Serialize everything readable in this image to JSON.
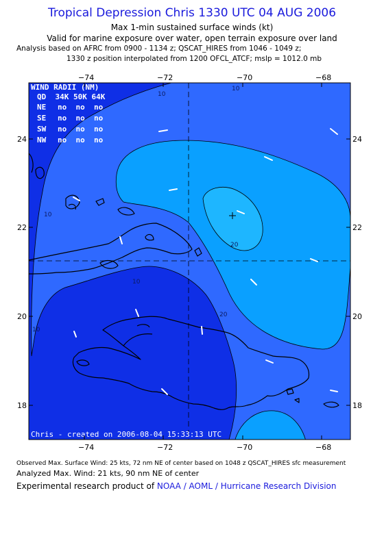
{
  "header": {
    "title": "Tropical Depression Chris 1330 UTC 04 AUG 2006",
    "line2": "Max 1-min sustained surface winds (kt)",
    "line3": "Valid for marine exposure over water, open terrain exposure over land",
    "line4": "Analysis based on  AFRC from 0900 - 1134 z;  QSCAT_HIRES from 1046 - 1049 z;",
    "line5": "1330 z position interpolated from 1200 OFCL_ATCF; mslp = 1012.0 mb"
  },
  "axes": {
    "lon_ticks": [
      "−74",
      "−72",
      "−70",
      "−68"
    ],
    "lat_ticks": [
      "24",
      "22",
      "20",
      "18"
    ]
  },
  "wind_radii": {
    "title": "WIND RADII (NM)",
    "header": "QD  34K 50K 64K",
    "rows": [
      {
        "q": "NE",
        "v": "no  no  no"
      },
      {
        "q": "SE",
        "v": "no  no  no"
      },
      {
        "q": "SW",
        "v": "no  no  no"
      },
      {
        "q": "NW",
        "v": "no  no  no"
      }
    ]
  },
  "contour_labels": [
    "10",
    "10",
    "10",
    "10",
    "10",
    "20",
    "20"
  ],
  "credit": "Chris - created on 2006-08-04 15:33:13 UTC",
  "colors": {
    "band_0_10": "#0f2fe6",
    "band_10_20": "#2f69ff",
    "band_20_30": "#0aa0ff",
    "land_outline": "#000000",
    "title_blue": "#1a1adc"
  },
  "footer": {
    "observed": "Observed Max. Surface Wind: 25 kts, 72 nm NE of center based on 1048 z QSCAT_HIRES sfc measurement",
    "analyzed": "Analyzed Max. Wind: 21 kts, 90 nm NE of center",
    "product_prefix": "Experimental research product of ",
    "product_org": "NOAA / AOML / Hurricane Research Division"
  }
}
